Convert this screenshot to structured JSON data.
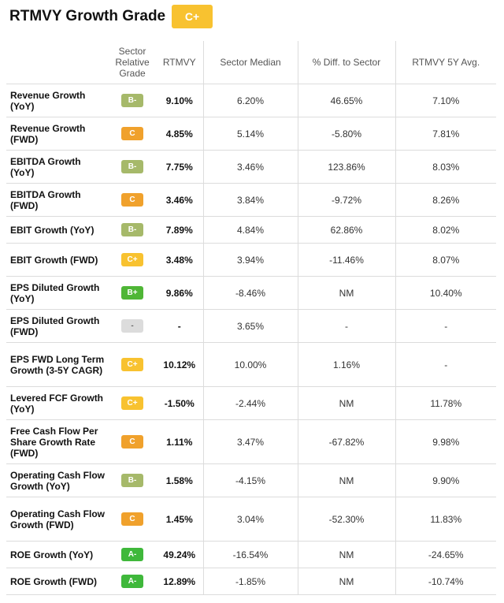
{
  "title": "RTMVY Growth Grade",
  "overall_grade": "C+",
  "colors": {
    "B-": "#a6b96a",
    "C": "#f0a12c",
    "C+": "#f8c230",
    "B+": "#4fb636",
    "A-": "#3fb83b",
    "-": "#dcdcdc"
  },
  "headers": {
    "grade": "Sector Relative Grade",
    "own": "RTMVY",
    "median": "Sector Median",
    "diff": "% Diff. to Sector",
    "avg": "RTMVY 5Y Avg."
  },
  "rows": [
    {
      "metric": "Revenue Growth (YoY)",
      "grade": "B-",
      "own": "9.10%",
      "median": "6.20%",
      "diff": "46.65%",
      "avg": "7.10%"
    },
    {
      "metric": "Revenue Growth (FWD)",
      "grade": "C",
      "own": "4.85%",
      "median": "5.14%",
      "diff": "-5.80%",
      "avg": "7.81%"
    },
    {
      "metric": "EBITDA Growth (YoY)",
      "grade": "B-",
      "own": "7.75%",
      "median": "3.46%",
      "diff": "123.86%",
      "avg": "8.03%"
    },
    {
      "metric": "EBITDA Growth (FWD)",
      "grade": "C",
      "own": "3.46%",
      "median": "3.84%",
      "diff": "-9.72%",
      "avg": "8.26%"
    },
    {
      "metric": "EBIT Growth (YoY)",
      "grade": "B-",
      "own": "7.89%",
      "median": "4.84%",
      "diff": "62.86%",
      "avg": "8.02%"
    },
    {
      "metric": "EBIT Growth (FWD)",
      "grade": "C+",
      "own": "3.48%",
      "median": "3.94%",
      "diff": "-11.46%",
      "avg": "8.07%"
    },
    {
      "metric": "EPS Diluted Growth (YoY)",
      "grade": "B+",
      "own": "9.86%",
      "median": "-8.46%",
      "diff": "NM",
      "avg": "10.40%"
    },
    {
      "metric": "EPS Diluted Growth (FWD)",
      "grade": "-",
      "own": "-",
      "median": "3.65%",
      "diff": "-",
      "avg": "-"
    },
    {
      "metric": "EPS FWD Long Term Growth (3-5Y CAGR)",
      "grade": "C+",
      "own": "10.12%",
      "median": "10.00%",
      "diff": "1.16%",
      "avg": "-"
    },
    {
      "metric": "Levered FCF Growth (YoY)",
      "grade": "C+",
      "own": "-1.50%",
      "median": "-2.44%",
      "diff": "NM",
      "avg": "11.78%"
    },
    {
      "metric": "Free Cash Flow Per Share Growth Rate (FWD)",
      "grade": "C",
      "own": "1.11%",
      "median": "3.47%",
      "diff": "-67.82%",
      "avg": "9.98%"
    },
    {
      "metric": "Operating Cash Flow Growth (YoY)",
      "grade": "B-",
      "own": "1.58%",
      "median": "-4.15%",
      "diff": "NM",
      "avg": "9.90%"
    },
    {
      "metric": "Operating Cash Flow Growth (FWD)",
      "grade": "C",
      "own": "1.45%",
      "median": "3.04%",
      "diff": "-52.30%",
      "avg": "11.83%"
    },
    {
      "metric": "ROE Growth (YoY)",
      "grade": "A-",
      "own": "49.24%",
      "median": "-16.54%",
      "diff": "NM",
      "avg": "-24.65%"
    },
    {
      "metric": "ROE Growth (FWD)",
      "grade": "A-",
      "own": "12.89%",
      "median": "-1.85%",
      "diff": "NM",
      "avg": "-10.74%"
    }
  ]
}
